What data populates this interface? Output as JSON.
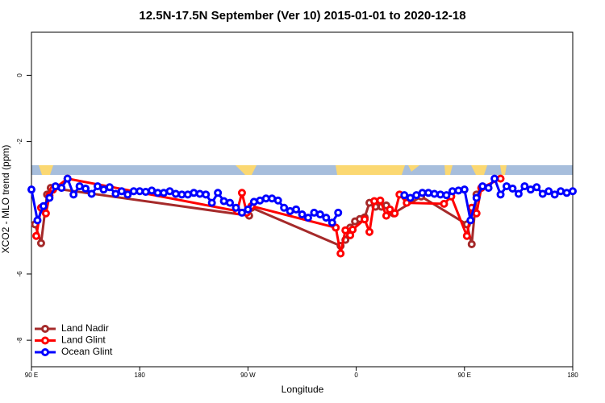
{
  "chart_data": {
    "type": "line",
    "title": "12.5N-17.5N September (Ver 10)   2015-01-01 to 2020-12-18",
    "x_label": "Longitude",
    "y_label": "XCO2 - MLO trend (ppm)",
    "xlim": [
      90,
      540
    ],
    "ylim": [
      -8.8,
      1.3
    ],
    "xticks": [
      {
        "value": 90,
        "label": "90 E"
      },
      180,
      {
        "value": 270,
        "label": "90 W"
      },
      {
        "value": 360,
        "label": "0"
      },
      {
        "value": 450,
        "label": "90 E"
      },
      {
        "value": 540,
        "label": "180"
      }
    ],
    "yticks": [
      -8,
      -6,
      -2,
      0
    ],
    "legend": "bottom-left",
    "series": [
      {
        "name": "Land Nadir",
        "color": "#a52a2a",
        "x": [
          93,
          98,
          103,
          106,
          271,
          273,
          347,
          351,
          355,
          359,
          363,
          367,
          371,
          376,
          381,
          385,
          391,
          414,
          452,
          456,
          460,
          464
        ],
        "values": [
          -4.5,
          -5.07,
          -3.6,
          -3.4,
          -4.24,
          -4.0,
          -5.15,
          -4.97,
          -4.6,
          -4.41,
          -4.34,
          -4.29,
          -3.85,
          -3.97,
          -3.97,
          -3.93,
          -4.17,
          -3.66,
          -4.5,
          -5.1,
          -3.6,
          -3.4
        ]
      },
      {
        "name": "Land Glint",
        "color": "#ff0000",
        "x": [
          94,
          98,
          102,
          105,
          108,
          120,
          261,
          265,
          269,
          273,
          343,
          347,
          351,
          355,
          357,
          367,
          371,
          375,
          380,
          385,
          388,
          392,
          396,
          402,
          433,
          439,
          452,
          456,
          460,
          464,
          480
        ],
        "values": [
          -4.85,
          -4.0,
          -4.17,
          -3.63,
          -3.45,
          -3.12,
          -4.1,
          -3.55,
          -4.15,
          -3.95,
          -4.6,
          -5.38,
          -4.68,
          -4.83,
          -4.66,
          -4.35,
          -4.73,
          -3.8,
          -3.78,
          -4.24,
          -4.05,
          -4.17,
          -3.6,
          -3.85,
          -3.88,
          -3.66,
          -4.85,
          -4.0,
          -4.17,
          -3.4,
          -3.12
        ]
      },
      {
        "name": "Ocean Glint",
        "color": "#0000ff",
        "x": [
          90,
          95,
          100,
          105,
          110,
          115,
          120,
          125,
          130,
          135,
          140,
          145,
          150,
          155,
          160,
          165,
          170,
          175,
          180,
          185,
          190,
          195,
          200,
          205,
          210,
          215,
          220,
          225,
          230,
          235,
          240,
          245,
          250,
          255,
          260,
          265,
          270,
          275,
          280,
          285,
          290,
          295,
          300,
          305,
          310,
          315,
          320,
          325,
          330,
          335,
          340,
          345,
          370,
          400,
          405,
          410,
          415,
          420,
          425,
          430,
          435,
          440,
          445,
          450,
          455,
          460,
          465,
          470,
          475,
          480,
          485,
          490,
          495,
          500,
          505,
          510,
          515,
          520,
          525,
          530,
          535,
          540
        ],
        "values": [
          -3.45,
          -4.38,
          -3.95,
          -3.7,
          -3.35,
          -3.4,
          -3.12,
          -3.6,
          -3.35,
          -3.42,
          -3.58,
          -3.35,
          -3.45,
          -3.38,
          -3.58,
          -3.5,
          -3.6,
          -3.5,
          -3.5,
          -3.52,
          -3.48,
          -3.55,
          -3.55,
          -3.5,
          -3.58,
          -3.6,
          -3.6,
          -3.55,
          -3.58,
          -3.6,
          -3.85,
          -3.55,
          -3.8,
          -3.85,
          -4.0,
          -4.15,
          -4.05,
          -3.82,
          -3.78,
          -3.72,
          -3.72,
          -3.78,
          -4.0,
          -4.1,
          -4.05,
          -4.2,
          -4.3,
          -4.15,
          -4.2,
          -4.3,
          -4.45,
          -4.15,
          null,
          -3.62,
          -3.7,
          -3.62,
          -3.55,
          -3.55,
          -3.58,
          -3.6,
          -3.62,
          -3.5,
          -3.48,
          -3.45,
          -4.38,
          -3.7,
          -3.35,
          -3.4,
          -3.12,
          -3.6,
          -3.35,
          -3.42,
          -3.58,
          -3.35,
          -3.45,
          -3.38,
          -3.58,
          -3.5,
          -3.6,
          -3.5,
          -3.55,
          -3.5
        ]
      }
    ]
  }
}
